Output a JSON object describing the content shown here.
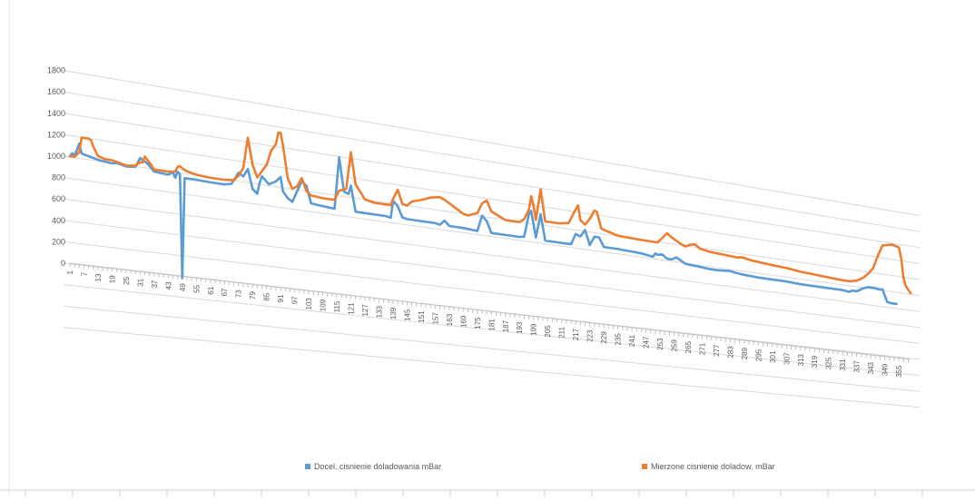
{
  "colors": {
    "series1": "#5b9bd5",
    "series2": "#ed7d31",
    "grid": "#d9d9d9",
    "text": "#595959"
  },
  "chart_data": {
    "type": "line",
    "title": "",
    "xlabel": "",
    "ylabel": "",
    "ylim": [
      0,
      1800
    ],
    "yticks": [
      "0",
      "200",
      "400",
      "600",
      "800",
      "1000",
      "1200",
      "1400",
      "1600",
      "1800"
    ],
    "x_tick_step": 6,
    "x_count": 360,
    "legend_position": "bottom",
    "grid": true,
    "series": [
      {
        "name": "Docel. cisnienie doladowania mBar",
        "color": "#5b9bd5",
        "points": [
          [
            1,
            1000
          ],
          [
            2,
            1030
          ],
          [
            3,
            1010
          ],
          [
            5,
            1130
          ],
          [
            6,
            1040
          ],
          [
            10,
            1020
          ],
          [
            14,
            1000
          ],
          [
            19,
            990
          ],
          [
            21,
            1000
          ],
          [
            25,
            980
          ],
          [
            29,
            990
          ],
          [
            31,
            1080
          ],
          [
            34,
            1040
          ],
          [
            37,
            970
          ],
          [
            43,
            960
          ],
          [
            45,
            990
          ],
          [
            46,
            940
          ],
          [
            47,
            1000
          ],
          [
            48,
            980
          ],
          [
            49,
            -20
          ],
          [
            50,
            950
          ],
          [
            55,
            950
          ],
          [
            61,
            945
          ],
          [
            67,
            945
          ],
          [
            70,
            960
          ],
          [
            73,
            1080
          ],
          [
            75,
            1050
          ],
          [
            77,
            1130
          ],
          [
            79,
            940
          ],
          [
            81,
            900
          ],
          [
            82,
            1010
          ],
          [
            83,
            1080
          ],
          [
            86,
            1010
          ],
          [
            89,
            1050
          ],
          [
            91,
            1100
          ],
          [
            92,
            960
          ],
          [
            94,
            900
          ],
          [
            96,
            870
          ],
          [
            100,
            1090
          ],
          [
            102,
            1050
          ],
          [
            104,
            880
          ],
          [
            109,
            870
          ],
          [
            114,
            860
          ],
          [
            116,
            1390
          ],
          [
            118,
            1050
          ],
          [
            120,
            1030
          ],
          [
            121,
            1120
          ],
          [
            123,
            860
          ],
          [
            127,
            860
          ],
          [
            133,
            860
          ],
          [
            136,
            860
          ],
          [
            138,
            850
          ],
          [
            139,
            1030
          ],
          [
            141,
            980
          ],
          [
            143,
            870
          ],
          [
            145,
            860
          ],
          [
            151,
            860
          ],
          [
            157,
            860
          ],
          [
            159,
            850
          ],
          [
            161,
            900
          ],
          [
            163,
            850
          ],
          [
            169,
            850
          ],
          [
            175,
            840
          ],
          [
            177,
            1010
          ],
          [
            179,
            960
          ],
          [
            181,
            840
          ],
          [
            187,
            840
          ],
          [
            193,
            840
          ],
          [
            195,
            850
          ],
          [
            197,
            1100
          ],
          [
            198,
            1140
          ],
          [
            200,
            860
          ],
          [
            202,
            1120
          ],
          [
            204,
            840
          ],
          [
            210,
            840
          ],
          [
            215,
            840
          ],
          [
            217,
            960
          ],
          [
            219,
            940
          ],
          [
            221,
            1020
          ],
          [
            223,
            860
          ],
          [
            225,
            960
          ],
          [
            227,
            960
          ],
          [
            229,
            860
          ],
          [
            235,
            860
          ],
          [
            245,
            850
          ],
          [
            250,
            830
          ],
          [
            251,
            870
          ],
          [
            252,
            860
          ],
          [
            254,
            870
          ],
          [
            256,
            830
          ],
          [
            258,
            830
          ],
          [
            260,
            860
          ],
          [
            262,
            830
          ],
          [
            264,
            800
          ],
          [
            270,
            790
          ],
          [
            274,
            780
          ],
          [
            278,
            780
          ],
          [
            283,
            790
          ],
          [
            285,
            780
          ],
          [
            288,
            770
          ],
          [
            295,
            760
          ],
          [
            301,
            760
          ],
          [
            307,
            760
          ],
          [
            313,
            750
          ],
          [
            319,
            750
          ],
          [
            325,
            750
          ],
          [
            331,
            750
          ],
          [
            334,
            740
          ],
          [
            335,
            760
          ],
          [
            337,
            760
          ],
          [
            340,
            810
          ],
          [
            342,
            830
          ],
          [
            345,
            830
          ],
          [
            347,
            820
          ],
          [
            348,
            830
          ],
          [
            350,
            680
          ],
          [
            352,
            670
          ],
          [
            354,
            670
          ]
        ]
      },
      {
        "name": "Mierzone cisnienie doladow. mBar",
        "color": "#ed7d31",
        "points": [
          [
            1,
            1000
          ],
          [
            3,
            1000
          ],
          [
            5,
            1050
          ],
          [
            6,
            1190
          ],
          [
            9,
            1190
          ],
          [
            10,
            1180
          ],
          [
            11,
            1120
          ],
          [
            13,
            1040
          ],
          [
            16,
            1020
          ],
          [
            19,
            1020
          ],
          [
            25,
            990
          ],
          [
            29,
            1000
          ],
          [
            31,
            1040
          ],
          [
            32,
            1040
          ],
          [
            33,
            1100
          ],
          [
            35,
            1050
          ],
          [
            37,
            990
          ],
          [
            43,
            990
          ],
          [
            46,
            1000
          ],
          [
            47,
            1050
          ],
          [
            48,
            1060
          ],
          [
            49,
            1040
          ],
          [
            51,
            1020
          ],
          [
            55,
            1000
          ],
          [
            61,
            990
          ],
          [
            67,
            990
          ],
          [
            71,
            1000
          ],
          [
            73,
            1050
          ],
          [
            75,
            1130
          ],
          [
            77,
            1440
          ],
          [
            79,
            1180
          ],
          [
            81,
            1060
          ],
          [
            85,
            1200
          ],
          [
            87,
            1350
          ],
          [
            89,
            1420
          ],
          [
            90,
            1540
          ],
          [
            91,
            1540
          ],
          [
            92,
            1420
          ],
          [
            94,
            1100
          ],
          [
            96,
            1000
          ],
          [
            98,
            1030
          ],
          [
            100,
            1120
          ],
          [
            102,
            1000
          ],
          [
            104,
            960
          ],
          [
            109,
            950
          ],
          [
            114,
            950
          ],
          [
            116,
            1050
          ],
          [
            119,
            1080
          ],
          [
            121,
            1460
          ],
          [
            123,
            1140
          ],
          [
            127,
            1000
          ],
          [
            131,
            980
          ],
          [
            136,
            980
          ],
          [
            138,
            980
          ],
          [
            139,
            1050
          ],
          [
            141,
            1150
          ],
          [
            143,
            1010
          ],
          [
            145,
            1000
          ],
          [
            147,
            1050
          ],
          [
            151,
            1080
          ],
          [
            155,
            1120
          ],
          [
            159,
            1140
          ],
          [
            161,
            1120
          ],
          [
            163,
            1090
          ],
          [
            169,
            1000
          ],
          [
            171,
            990
          ],
          [
            175,
            1030
          ],
          [
            177,
            1140
          ],
          [
            179,
            1180
          ],
          [
            181,
            1070
          ],
          [
            187,
            1000
          ],
          [
            193,
            1000
          ],
          [
            195,
            1040
          ],
          [
            197,
            1150
          ],
          [
            198,
            1300
          ],
          [
            199,
            1200
          ],
          [
            200,
            1050
          ],
          [
            202,
            1390
          ],
          [
            204,
            1050
          ],
          [
            210,
            1050
          ],
          [
            214,
            1070
          ],
          [
            216,
            1180
          ],
          [
            218,
            1280
          ],
          [
            219,
            1120
          ],
          [
            221,
            1080
          ],
          [
            223,
            1150
          ],
          [
            225,
            1250
          ],
          [
            226,
            1240
          ],
          [
            228,
            1060
          ],
          [
            235,
            1010
          ],
          [
            245,
            1000
          ],
          [
            252,
            1000
          ],
          [
            254,
            1060
          ],
          [
            256,
            1120
          ],
          [
            258,
            1080
          ],
          [
            262,
            1020
          ],
          [
            264,
            1000
          ],
          [
            266,
            1030
          ],
          [
            268,
            1040
          ],
          [
            270,
            1000
          ],
          [
            274,
            980
          ],
          [
            280,
            970
          ],
          [
            286,
            960
          ],
          [
            288,
            970
          ],
          [
            292,
            950
          ],
          [
            301,
            930
          ],
          [
            307,
            920
          ],
          [
            313,
            900
          ],
          [
            319,
            890
          ],
          [
            325,
            880
          ],
          [
            331,
            870
          ],
          [
            334,
            870
          ],
          [
            337,
            890
          ],
          [
            340,
            940
          ],
          [
            342,
            1000
          ],
          [
            344,
            1070
          ],
          [
            346,
            1230
          ],
          [
            348,
            1370
          ],
          [
            352,
            1400
          ],
          [
            355,
            1380
          ],
          [
            356,
            1250
          ],
          [
            357,
            1000
          ],
          [
            358,
            910
          ],
          [
            360,
            830
          ]
        ]
      }
    ]
  }
}
